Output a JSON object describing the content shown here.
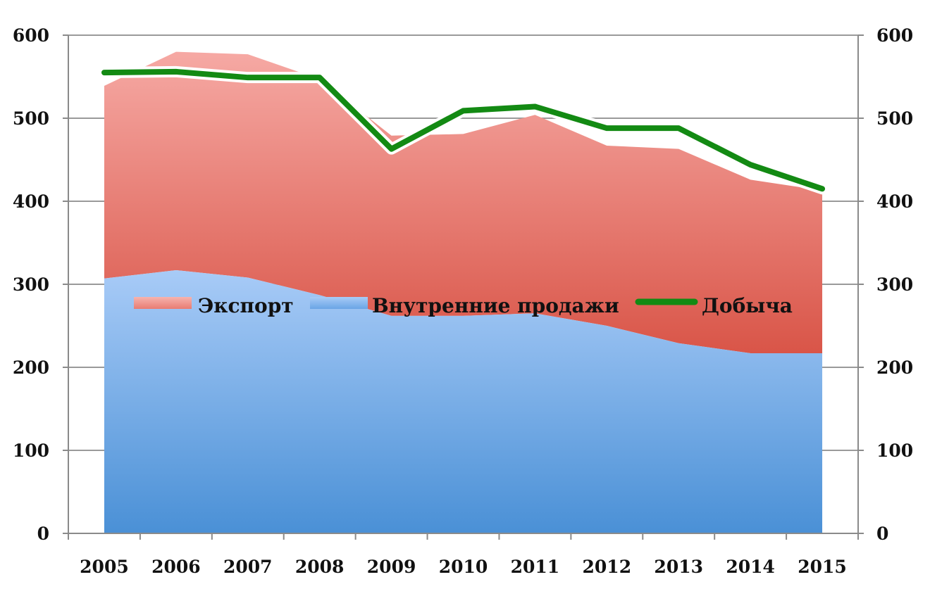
{
  "chart_data": {
    "type": "area",
    "categories": [
      "2005",
      "2006",
      "2007",
      "2008",
      "2009",
      "2010",
      "2011",
      "2012",
      "2013",
      "2014",
      "2015"
    ],
    "series": [
      {
        "name": "Внутренние продажи",
        "kind": "stacked-area",
        "color_top": "#a8cbf7",
        "color_bottom": "#4a90d6",
        "values": [
          307,
          317,
          308,
          287,
          262,
          262,
          265,
          250,
          229,
          217,
          217
        ]
      },
      {
        "name": "Экспорт",
        "kind": "stacked-area",
        "color_top": "#f6a9a4",
        "color_bottom": "#d95548",
        "values": [
          232,
          263,
          269,
          260,
          217,
          219,
          239,
          217,
          234,
          209,
          196
        ]
      },
      {
        "name": "Добыча",
        "kind": "line",
        "color": "#138a13",
        "values": [
          555,
          556,
          549,
          549,
          463,
          509,
          514,
          488,
          488,
          444,
          415
        ]
      }
    ],
    "ylim": [
      0,
      600
    ],
    "yticks": [
      "0",
      "100",
      "200",
      "300",
      "400",
      "500",
      "600"
    ],
    "y2ticks": [
      "0",
      "100",
      "200",
      "300",
      "400",
      "500",
      "600"
    ],
    "grid": true,
    "legend": [
      "Экспорт",
      "Внутренние продажи",
      "Добыча"
    ],
    "legend_position": "center",
    "title": "",
    "xlabel": "",
    "ylabel": ""
  }
}
